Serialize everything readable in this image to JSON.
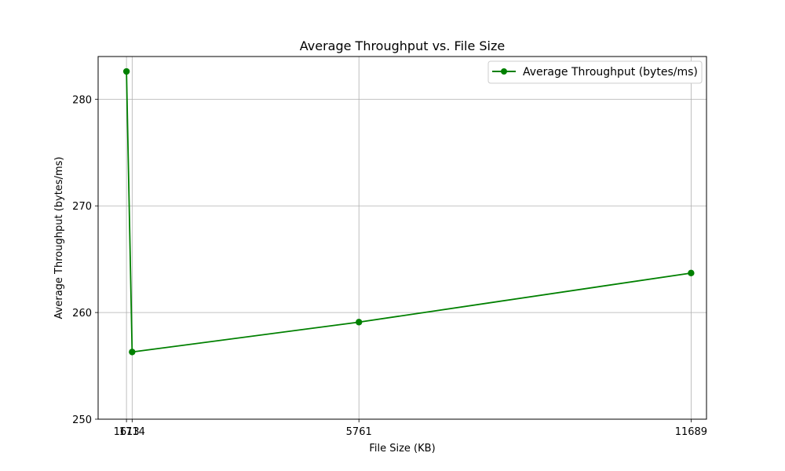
{
  "chart_data": {
    "type": "line",
    "title": "Average Throughput vs. File Size",
    "xlabel": "File Size (KB)",
    "ylabel": "Average Throughput (bytes/ms)",
    "x_ticks": [
      1613,
      1714,
      5761,
      11689
    ],
    "y_ticks": [
      250,
      260,
      270,
      280
    ],
    "xlim": [
      1107,
      11964
    ],
    "ylim": [
      250,
      284
    ],
    "grid": true,
    "legend_position": "top-right",
    "series": [
      {
        "name": "Average Throughput (bytes/ms)",
        "color": "#008000",
        "marker": "circle",
        "x": [
          1613,
          1714,
          5761,
          11689
        ],
        "y": [
          282.6,
          256.3,
          259.1,
          263.7
        ]
      }
    ]
  }
}
